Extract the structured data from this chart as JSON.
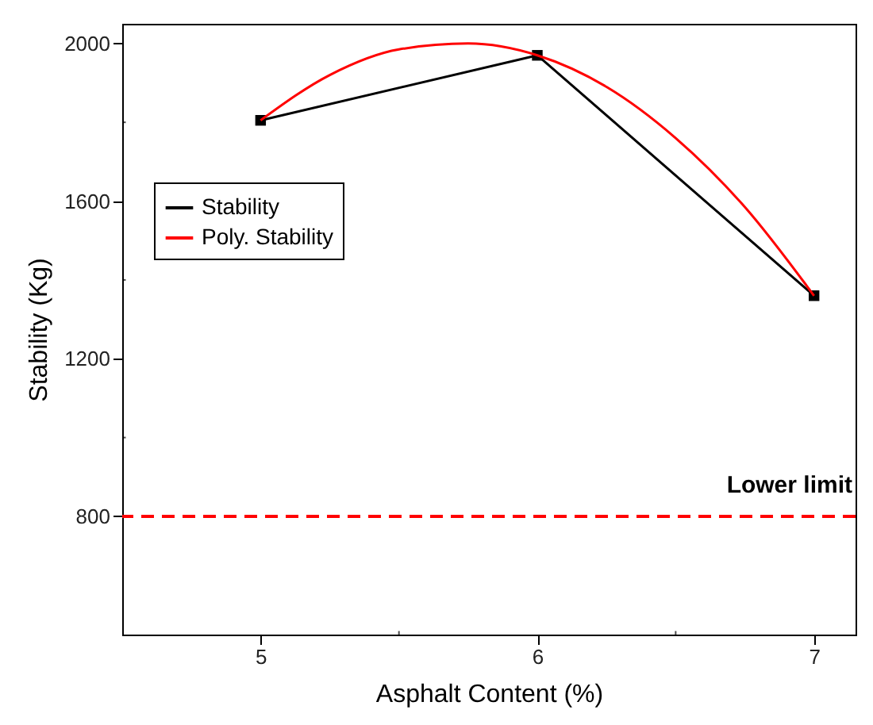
{
  "chart_data": {
    "type": "line",
    "xlabel": "Asphalt Content (%)",
    "ylabel": "Stability (Kg)",
    "xlim": [
      4.5,
      7.15
    ],
    "xticks": [
      5,
      6,
      7
    ],
    "ylim": [
      500,
      2050
    ],
    "yticks": [
      800,
      1200,
      1600,
      2000
    ],
    "legend": "top left",
    "line_style": "solid",
    "series": [
      {
        "name": "Stability",
        "color": "#000000",
        "marker": "square",
        "x": [
          5,
          6,
          7
        ],
        "values": [
          1805,
          1970,
          1360
        ]
      },
      {
        "name": "Poly. Stability",
        "color": "#ff0000",
        "marker": "none",
        "x": [
          5,
          5.25,
          5.5,
          5.75,
          6,
          6.25,
          6.5,
          6.75,
          7
        ],
        "values": [
          1805,
          1920,
          1985,
          2000,
          1970,
          1890,
          1760,
          1585,
          1360
        ]
      }
    ],
    "ref_lines": [
      {
        "axis": "y",
        "value": 800,
        "label": "Lower limit",
        "color": "#ff0000",
        "line_style": "dashed"
      }
    ]
  }
}
